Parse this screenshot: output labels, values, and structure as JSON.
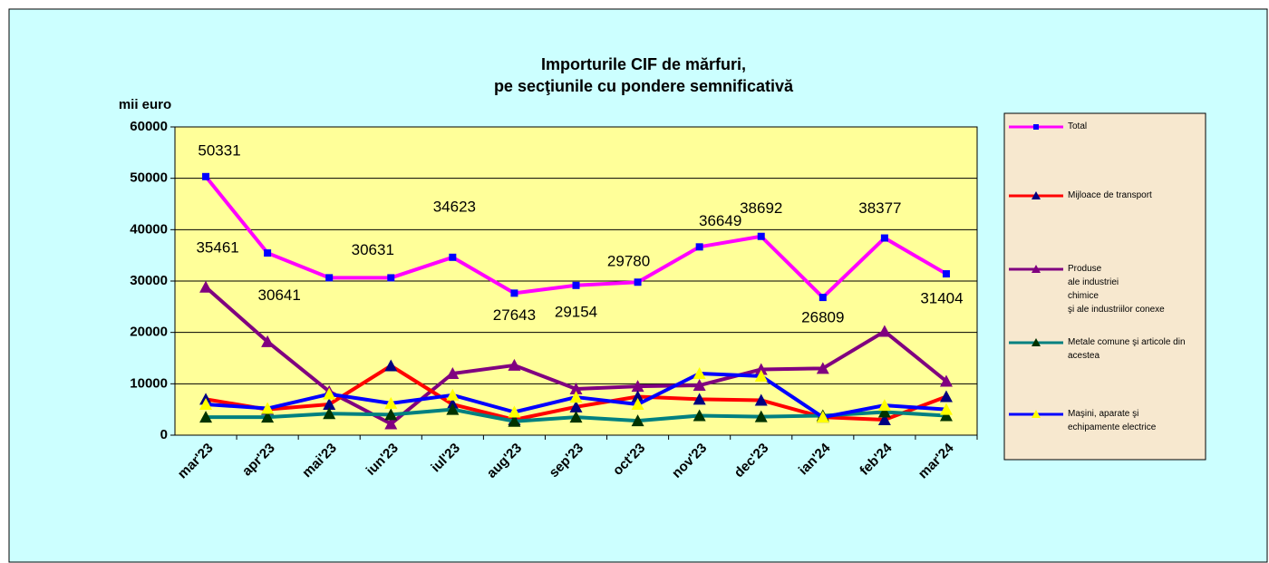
{
  "chart_data": {
    "type": "line",
    "title": [
      "Importurile CIF de mărfuri,",
      "pe secţiunile cu pondere semnificativă"
    ],
    "y_label": "mii euro",
    "categories": [
      "mar'23",
      "apr'23",
      "mai'23",
      "iun'23",
      "iul'23",
      "aug'23",
      "sep'23",
      "oct'23",
      "nov'23",
      "dec'23",
      "ian'24",
      "feb'24",
      "mar'24"
    ],
    "ylim": [
      0,
      60000
    ],
    "yticks": [
      0,
      10000,
      20000,
      30000,
      40000,
      50000,
      60000
    ],
    "grid": true,
    "legend": "right",
    "series": [
      {
        "name": "Total",
        "color": "#ff00ff",
        "marker": "square",
        "marker_color": "#0000ff",
        "data_labels": true,
        "values": [
          50331,
          35461,
          30641,
          30631,
          34623,
          27643,
          29154,
          29780,
          36649,
          38692,
          26809,
          38377,
          31404
        ]
      },
      {
        "name": "Mijloace de transport",
        "color": "#ff0000",
        "marker": "triangle",
        "marker_color": "#000080",
        "values": [
          7000,
          5000,
          6000,
          13500,
          6000,
          3000,
          5500,
          7500,
          7000,
          6800,
          3500,
          3000,
          7500
        ]
      },
      {
        "name": "Produse\nale industriei\nchimice\nşi ale industriilor conexe",
        "color": "#800080",
        "marker": "triangle",
        "marker_color": "#800080",
        "values": [
          28800,
          18200,
          8500,
          2200,
          12000,
          13600,
          9000,
          9500,
          9700,
          12800,
          13000,
          20200,
          10500
        ]
      },
      {
        "name": "Metale comune şi articole din\nacestea",
        "color": "#008080",
        "marker": "triangle",
        "marker_color": "#003300",
        "values": [
          3500,
          3500,
          4200,
          4000,
          5000,
          2700,
          3500,
          2800,
          3800,
          3600,
          3800,
          4500,
          3800
        ]
      },
      {
        "name": "Maşini, aparate şi\nechipamente electrice",
        "color": "#0000ff",
        "marker": "triangle",
        "marker_color": "#ffff00",
        "values": [
          6000,
          5200,
          8000,
          6200,
          7800,
          4500,
          7400,
          6000,
          12000,
          11500,
          3500,
          5800,
          5000
        ]
      }
    ]
  }
}
